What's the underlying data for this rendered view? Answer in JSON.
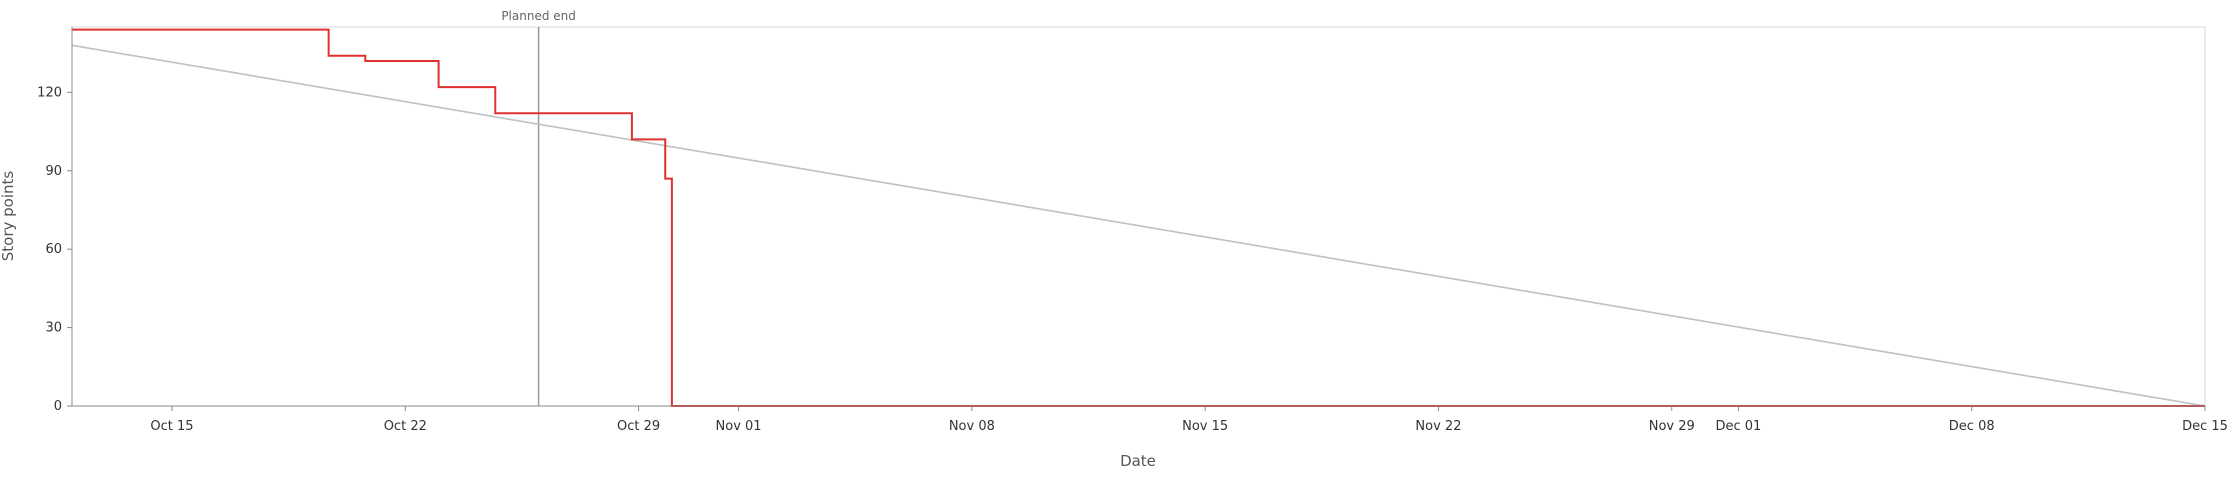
{
  "chart_data": {
    "type": "line",
    "title": "",
    "xlabel": "Date",
    "ylabel": "Story points",
    "x_axis": {
      "type": "date",
      "range": [
        "2023-10-12",
        "2023-12-15"
      ],
      "ticks": [
        {
          "date": "2023-10-15",
          "label": "Oct 15"
        },
        {
          "date": "2023-10-22",
          "label": "Oct 22"
        },
        {
          "date": "2023-10-29",
          "label": "Oct 29"
        },
        {
          "date": "2023-11-01",
          "label": "Nov 01"
        },
        {
          "date": "2023-11-08",
          "label": "Nov 08"
        },
        {
          "date": "2023-11-15",
          "label": "Nov 15"
        },
        {
          "date": "2023-11-22",
          "label": "Nov 22"
        },
        {
          "date": "2023-11-29",
          "label": "Nov 29"
        },
        {
          "date": "2023-12-01",
          "label": "Dec 01"
        },
        {
          "date": "2023-12-08",
          "label": "Dec 08"
        },
        {
          "date": "2023-12-15",
          "label": "Dec 15"
        }
      ]
    },
    "y_axis": {
      "range": [
        0,
        145
      ],
      "ticks": [
        0,
        30,
        60,
        90,
        120
      ]
    },
    "grid": false,
    "legend": "none",
    "annotations": [
      {
        "type": "vertical-line",
        "date": "2023-10-26",
        "label": "Planned end",
        "color": "#999999"
      }
    ],
    "series": [
      {
        "style": "step",
        "color": "#e03131",
        "points": [
          {
            "date": "2023-10-12",
            "value": 144
          },
          {
            "date": "2023-10-19.7",
            "value": 134
          },
          {
            "date": "2023-10-20.8",
            "value": 132
          },
          {
            "date": "2023-10-23",
            "value": 122
          },
          {
            "date": "2023-10-24.7",
            "value": 112
          },
          {
            "date": "2023-10-28.8",
            "value": 102
          },
          {
            "date": "2023-10-29.8",
            "value": 87
          },
          {
            "date": "2023-10-30",
            "value": 0
          },
          {
            "date": "2023-12-15",
            "value": 0
          }
        ]
      },
      {
        "style": "line",
        "color": "#c0c0c0",
        "points": [
          {
            "date": "2023-10-12",
            "value": 138
          },
          {
            "date": "2023-12-15",
            "value": 0
          }
        ]
      }
    ]
  }
}
